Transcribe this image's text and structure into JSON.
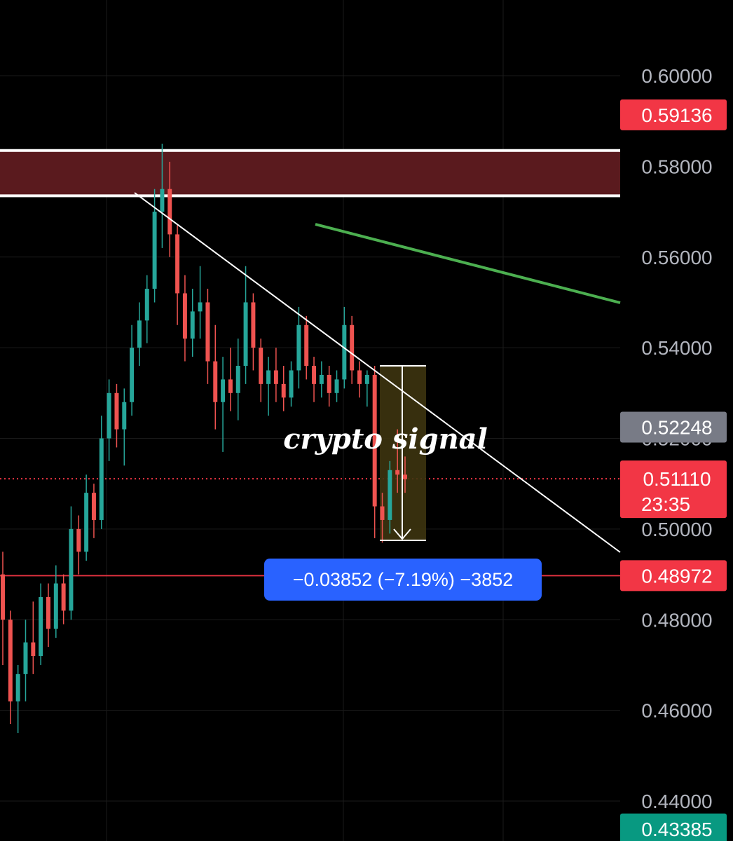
{
  "chart_data": {
    "type": "candlestick",
    "title": "",
    "y_ticks": [
      "0.60000",
      "0.58000",
      "0.56000",
      "0.54000",
      "0.52000",
      "0.50000",
      "0.48000",
      "0.46000",
      "0.44000"
    ],
    "ylim": [
      0.4315,
      0.6154
    ],
    "grid": true,
    "candles": [
      [
        0.49,
        0.495,
        0.47,
        0.48
      ],
      [
        0.48,
        0.482,
        0.457,
        0.462
      ],
      [
        0.462,
        0.47,
        0.455,
        0.468
      ],
      [
        0.468,
        0.48,
        0.462,
        0.475
      ],
      [
        0.475,
        0.484,
        0.468,
        0.472
      ],
      [
        0.472,
        0.488,
        0.47,
        0.485
      ],
      [
        0.485,
        0.488,
        0.474,
        0.478
      ],
      [
        0.478,
        0.492,
        0.476,
        0.488
      ],
      [
        0.488,
        0.49,
        0.479,
        0.482
      ],
      [
        0.482,
        0.505,
        0.48,
        0.5
      ],
      [
        0.5,
        0.503,
        0.49,
        0.495
      ],
      [
        0.495,
        0.512,
        0.493,
        0.508
      ],
      [
        0.508,
        0.51,
        0.498,
        0.502
      ],
      [
        0.502,
        0.525,
        0.5,
        0.52
      ],
      [
        0.52,
        0.533,
        0.515,
        0.53
      ],
      [
        0.53,
        0.532,
        0.518,
        0.522
      ],
      [
        0.522,
        0.531,
        0.514,
        0.528
      ],
      [
        0.528,
        0.545,
        0.525,
        0.54
      ],
      [
        0.54,
        0.55,
        0.536,
        0.546
      ],
      [
        0.546,
        0.556,
        0.541,
        0.553
      ],
      [
        0.553,
        0.575,
        0.55,
        0.57
      ],
      [
        0.57,
        0.585,
        0.562,
        0.575
      ],
      [
        0.575,
        0.581,
        0.56,
        0.565
      ],
      [
        0.565,
        0.567,
        0.545,
        0.552
      ],
      [
        0.552,
        0.556,
        0.537,
        0.542
      ],
      [
        0.542,
        0.553,
        0.538,
        0.548
      ],
      [
        0.548,
        0.558,
        0.542,
        0.55
      ],
      [
        0.55,
        0.553,
        0.532,
        0.537
      ],
      [
        0.537,
        0.545,
        0.522,
        0.528
      ],
      [
        0.528,
        0.538,
        0.517,
        0.533
      ],
      [
        0.533,
        0.54,
        0.526,
        0.53
      ],
      [
        0.53,
        0.542,
        0.524,
        0.536
      ],
      [
        0.536,
        0.558,
        0.532,
        0.55
      ],
      [
        0.55,
        0.552,
        0.535,
        0.54
      ],
      [
        0.54,
        0.542,
        0.528,
        0.532
      ],
      [
        0.532,
        0.538,
        0.525,
        0.535
      ],
      [
        0.535,
        0.54,
        0.528,
        0.532
      ],
      [
        0.532,
        0.536,
        0.526,
        0.529
      ],
      [
        0.529,
        0.537,
        0.527,
        0.535
      ],
      [
        0.535,
        0.549,
        0.531,
        0.545
      ],
      [
        0.545,
        0.547,
        0.533,
        0.536
      ],
      [
        0.536,
        0.538,
        0.528,
        0.532
      ],
      [
        0.532,
        0.537,
        0.529,
        0.534
      ],
      [
        0.534,
        0.536,
        0.527,
        0.53
      ],
      [
        0.53,
        0.535,
        0.528,
        0.533
      ],
      [
        0.533,
        0.549,
        0.531,
        0.545
      ],
      [
        0.545,
        0.547,
        0.532,
        0.535
      ],
      [
        0.535,
        0.537,
        0.529,
        0.532
      ],
      [
        0.532,
        0.535,
        0.527,
        0.534
      ],
      [
        0.534,
        0.536,
        0.498,
        0.505
      ],
      [
        0.505,
        0.508,
        0.497,
        0.502
      ],
      [
        0.502,
        0.515,
        0.499,
        0.513
      ],
      [
        0.513,
        0.522,
        0.508,
        0.512
      ],
      [
        0.512,
        0.516,
        0.508,
        0.511
      ]
    ],
    "resistance_zone": [
      0.5735,
      0.5835
    ],
    "support_line": 0.48972,
    "current_price_line": 0.5111,
    "price_tags": [
      {
        "value": "0.59136",
        "color": "#f23645",
        "price": 0.59136
      },
      {
        "value": "0.52248",
        "color": "#787b86",
        "price": 0.52248
      },
      {
        "value": "0.51110",
        "sub": "23:35",
        "color": "#f23645",
        "price": 0.5111
      },
      {
        "value": "0.48972",
        "color": "#f23645",
        "price": 0.48972
      },
      {
        "value": "0.43385",
        "color": "#089981",
        "price": 0.43385
      }
    ],
    "annotations": {
      "signal_text": "crypto signal",
      "measure_text": "−0.03852 (−7.19%) −3852"
    },
    "colors": {
      "up": "#26a69a",
      "down": "#ef5350",
      "zone": "#5a1a1e",
      "green_line": "#4caf50",
      "measure_box": "#3d3410",
      "measure_label": "#2962ff"
    }
  }
}
